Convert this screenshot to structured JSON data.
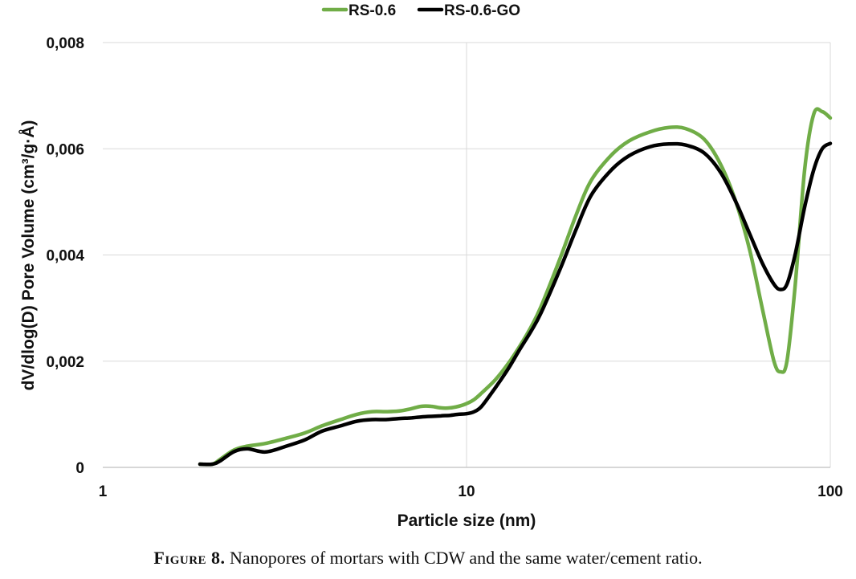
{
  "chart_data": {
    "type": "line",
    "xscale": "log",
    "xlim": [
      1,
      100
    ],
    "ylim": [
      0,
      0.008
    ],
    "x_ticks": [
      1,
      10,
      100
    ],
    "x_tick_labels": [
      "1",
      "10",
      "100"
    ],
    "y_ticks": [
      0,
      0.002,
      0.004,
      0.006,
      0.008
    ],
    "y_tick_labels": [
      "0",
      "0,002",
      "0,004",
      "0,006",
      "0,008"
    ],
    "xlabel": "Particle size (nm)",
    "ylabel": "dV/dlog(D) Pore Volume  (cm³/g·Å)",
    "grid": "horizontal",
    "legend_position": "top-center",
    "series": [
      {
        "name": "RS-0.6",
        "color": "#70ad47",
        "x": [
          1.85,
          2.0,
          2.1,
          2.3,
          2.5,
          2.8,
          3.2,
          3.6,
          4.0,
          4.5,
          5.0,
          5.5,
          6.0,
          6.5,
          7.0,
          7.5,
          8.0,
          8.5,
          9.0,
          9.5,
          10.0,
          10.5,
          11.0,
          12.0,
          13.0,
          14.0,
          15.0,
          16.0,
          18.0,
          20.0,
          22.0,
          25.0,
          28.0,
          32.0,
          36.0,
          40.0,
          45.0,
          50.0,
          55.0,
          60.0,
          65.0,
          70.0,
          73.0,
          76.0,
          80.0,
          85.0,
          90.0,
          95.0,
          100.0
        ],
        "values": [
          6e-05,
          6e-05,
          0.00015,
          0.00033,
          0.0004,
          0.00045,
          0.00055,
          0.00065,
          0.00078,
          0.0009,
          0.001,
          0.00105,
          0.00105,
          0.00106,
          0.0011,
          0.00115,
          0.00115,
          0.00112,
          0.00112,
          0.00115,
          0.0012,
          0.00128,
          0.0014,
          0.00165,
          0.00195,
          0.00228,
          0.00263,
          0.00302,
          0.0039,
          0.00475,
          0.0054,
          0.00588,
          0.00615,
          0.00632,
          0.0064,
          0.00638,
          0.00618,
          0.0057,
          0.005,
          0.0041,
          0.003,
          0.002,
          0.0018,
          0.002,
          0.0034,
          0.0056,
          0.00665,
          0.0067,
          0.00658
        ]
      },
      {
        "name": "RS-0.6-GO",
        "color": "#000000",
        "x": [
          1.85,
          2.0,
          2.1,
          2.3,
          2.5,
          2.8,
          3.2,
          3.6,
          4.0,
          4.5,
          5.0,
          5.5,
          6.0,
          6.5,
          7.0,
          7.5,
          8.0,
          8.5,
          9.0,
          9.5,
          10.0,
          10.5,
          11.0,
          12.0,
          13.0,
          14.0,
          15.0,
          16.0,
          18.0,
          20.0,
          22.0,
          25.0,
          28.0,
          32.0,
          36.0,
          40.0,
          45.0,
          50.0,
          55.0,
          60.0,
          65.0,
          70.0,
          73.0,
          76.0,
          80.0,
          85.0,
          90.0,
          95.0,
          100.0
        ],
        "values": [
          6e-05,
          6e-05,
          0.00012,
          0.0003,
          0.00035,
          0.00029,
          0.0004,
          0.00052,
          0.00068,
          0.00078,
          0.00087,
          0.0009,
          0.0009,
          0.00092,
          0.00093,
          0.00095,
          0.00096,
          0.00097,
          0.00098,
          0.001,
          0.00101,
          0.00105,
          0.00115,
          0.0015,
          0.00185,
          0.00222,
          0.00255,
          0.0029,
          0.0037,
          0.00448,
          0.00512,
          0.0056,
          0.00587,
          0.00604,
          0.00609,
          0.00607,
          0.00592,
          0.00555,
          0.005,
          0.0044,
          0.00385,
          0.00345,
          0.00335,
          0.00345,
          0.004,
          0.0049,
          0.0056,
          0.006,
          0.0061
        ]
      }
    ]
  },
  "caption": {
    "label": "Figure 8.",
    "text": " Nanopores of mortars with CDW and the same water/cement ratio."
  }
}
